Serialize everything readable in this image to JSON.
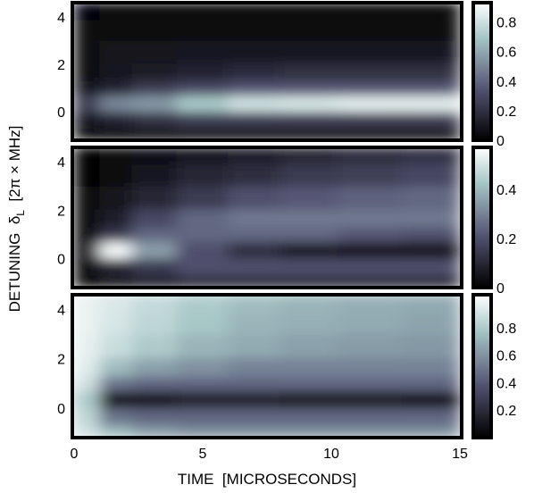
{
  "chart_data": [
    {
      "type": "heatmap",
      "xlim": [
        0,
        15
      ],
      "ylim": [
        -1.2,
        4.6
      ],
      "yticks": [
        0,
        2,
        4
      ],
      "x": [
        0.5,
        1.5,
        3,
        5,
        7,
        9,
        11.5,
        14
      ],
      "y": [
        -1,
        -0.4,
        0.4,
        1,
        1.6,
        2.5,
        3.5,
        4.3
      ],
      "z": [
        [
          0.05,
          0.05,
          0.05,
          0.05,
          0.05,
          0.05,
          0.05,
          0.05
        ],
        [
          0.1,
          0.15,
          0.2,
          0.25,
          0.25,
          0.25,
          0.25,
          0.25
        ],
        [
          0.25,
          0.5,
          0.55,
          0.7,
          0.8,
          0.82,
          0.85,
          0.85
        ],
        [
          0.1,
          0.15,
          0.25,
          0.3,
          0.35,
          0.35,
          0.35,
          0.35
        ],
        [
          0.05,
          0.1,
          0.12,
          0.15,
          0.18,
          0.2,
          0.2,
          0.2
        ],
        [
          0.05,
          0.08,
          0.08,
          0.1,
          0.1,
          0.1,
          0.1,
          0.1
        ],
        [
          0.03,
          0.05,
          0.05,
          0.05,
          0.05,
          0.05,
          0.05,
          0.05
        ],
        [
          0.02,
          0.03,
          0.03,
          0.03,
          0.03,
          0.03,
          0.03,
          0.03
        ]
      ],
      "clim": [
        0,
        0.93
      ],
      "cticks": [
        0,
        0.2,
        0.4,
        0.6,
        0.8
      ],
      "colormap": "bone"
    },
    {
      "type": "heatmap",
      "xlim": [
        0,
        15
      ],
      "ylim": [
        -1.2,
        4.6
      ],
      "yticks": [
        0,
        2,
        4
      ],
      "ylabel": "DETUNING  δ",
      "ylabel_sub": "L",
      "ylabel_unit": "  [2π × MHz]",
      "x": [
        0.5,
        1.5,
        3,
        5,
        7,
        9,
        11.5,
        14
      ],
      "y": [
        -1,
        -0.4,
        0.4,
        1,
        1.6,
        2.5,
        3.5,
        4.3
      ],
      "z": [
        [
          0.02,
          0.05,
          0.08,
          0.1,
          0.1,
          0.1,
          0.1,
          0.1
        ],
        [
          0.02,
          0.1,
          0.15,
          0.2,
          0.2,
          0.2,
          0.2,
          0.2
        ],
        [
          0.05,
          0.55,
          0.35,
          0.2,
          0.12,
          0.08,
          0.06,
          0.05
        ],
        [
          0.02,
          0.15,
          0.25,
          0.25,
          0.25,
          0.25,
          0.22,
          0.2
        ],
        [
          0.02,
          0.08,
          0.18,
          0.25,
          0.28,
          0.28,
          0.28,
          0.28
        ],
        [
          0.02,
          0.05,
          0.1,
          0.15,
          0.2,
          0.22,
          0.24,
          0.25
        ],
        [
          0.01,
          0.03,
          0.06,
          0.1,
          0.12,
          0.15,
          0.16,
          0.18
        ],
        [
          0.01,
          0.02,
          0.04,
          0.06,
          0.08,
          0.1,
          0.12,
          0.13
        ]
      ],
      "clim": [
        0,
        0.57
      ],
      "cticks": [
        0,
        0.2,
        0.4
      ],
      "colormap": "bone"
    },
    {
      "type": "heatmap",
      "xlim": [
        0,
        15
      ],
      "ylim": [
        -1.2,
        4.6
      ],
      "yticks": [
        0,
        2,
        4
      ],
      "xticks": [
        0,
        5,
        10,
        15
      ],
      "xlabel": "TIME  [MICROSECONDS]",
      "x": [
        0.5,
        1.5,
        3,
        5,
        7,
        9,
        11.5,
        14
      ],
      "y": [
        -1,
        -0.4,
        0.4,
        1,
        1.6,
        2.5,
        3.5,
        4.3
      ],
      "z": [
        [
          0.9,
          0.75,
          0.65,
          0.6,
          0.6,
          0.6,
          0.6,
          0.6
        ],
        [
          0.85,
          0.5,
          0.45,
          0.45,
          0.45,
          0.45,
          0.45,
          0.45
        ],
        [
          0.8,
          0.1,
          0.1,
          0.15,
          0.15,
          0.12,
          0.12,
          0.1
        ],
        [
          0.9,
          0.5,
          0.45,
          0.45,
          0.45,
          0.45,
          0.45,
          0.45
        ],
        [
          0.95,
          0.75,
          0.65,
          0.6,
          0.55,
          0.55,
          0.55,
          0.55
        ],
        [
          0.97,
          0.88,
          0.8,
          0.72,
          0.68,
          0.65,
          0.63,
          0.62
        ],
        [
          0.98,
          0.92,
          0.85,
          0.78,
          0.72,
          0.7,
          0.68,
          0.66
        ],
        [
          0.98,
          0.93,
          0.87,
          0.8,
          0.75,
          0.72,
          0.7,
          0.68
        ]
      ],
      "clim": [
        0,
        1.04
      ],
      "cticks": [
        0.2,
        0.4,
        0.6,
        0.8
      ],
      "colormap": "bone"
    }
  ]
}
